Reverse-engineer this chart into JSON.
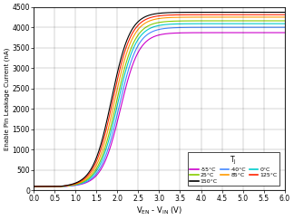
{
  "title": "",
  "xlabel_math": true,
  "ylabel": "Enable Pin Leakage Current (nA)",
  "xlim": [
    0,
    6
  ],
  "ylim": [
    0,
    4500
  ],
  "xticks": [
    0,
    0.5,
    1.0,
    1.5,
    2.0,
    2.5,
    3.0,
    3.5,
    4.0,
    4.5,
    5.0,
    5.5,
    6.0
  ],
  "yticks": [
    0,
    500,
    1000,
    1500,
    2000,
    2500,
    3000,
    3500,
    4000,
    4500
  ],
  "temperatures": [
    {
      "label": "-55°C",
      "color": "#cc00cc",
      "sat": 3870,
      "knee": 2.07,
      "steepness": 4.5,
      "onset": 0.75,
      "flat_after": 2.15
    },
    {
      "label": "-40°C",
      "color": "#4488ff",
      "sat": 4000,
      "knee": 2.04,
      "steepness": 4.5,
      "onset": 0.73,
      "flat_after": 2.12
    },
    {
      "label": "0°C",
      "color": "#00cccc",
      "sat": 4090,
      "knee": 2.0,
      "steepness": 4.5,
      "onset": 0.71,
      "flat_after": 2.08
    },
    {
      "label": "25°C",
      "color": "#88cc00",
      "sat": 4160,
      "knee": 1.97,
      "steepness": 4.5,
      "onset": 0.69,
      "flat_after": 2.05
    },
    {
      "label": "85°C",
      "color": "#ff9900",
      "sat": 4250,
      "knee": 1.93,
      "steepness": 4.5,
      "onset": 0.67,
      "flat_after": 2.01
    },
    {
      "label": "125°C",
      "color": "#ff2200",
      "sat": 4310,
      "knee": 1.89,
      "steepness": 4.5,
      "onset": 0.65,
      "flat_after": 1.97
    },
    {
      "label": "150°C",
      "color": "#000000",
      "sat": 4370,
      "knee": 1.86,
      "steepness": 4.5,
      "onset": 0.63,
      "flat_after": 1.94
    }
  ],
  "base_current": 100,
  "background_color": "#ffffff",
  "fig_width": 3.24,
  "fig_height": 2.43,
  "dpi": 100
}
